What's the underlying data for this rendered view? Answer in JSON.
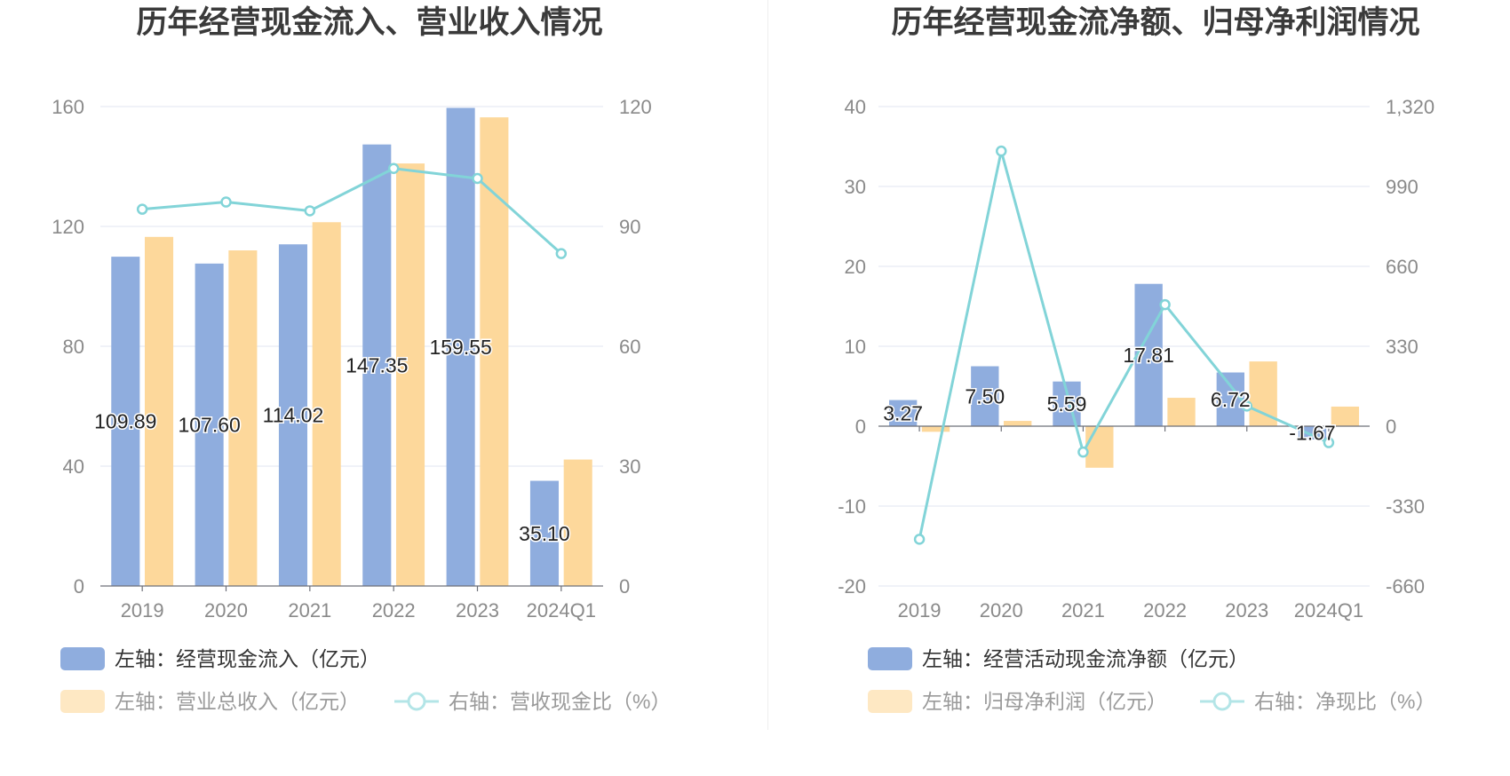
{
  "chart_data": [
    {
      "type": "bar",
      "title": "历年经营现金流入、营业收入情况",
      "categories": [
        "2019",
        "2020",
        "2021",
        "2022",
        "2023",
        "2024Q1"
      ],
      "y_left": {
        "range": [
          0,
          160
        ],
        "ticks": [
          "0",
          "40",
          "80",
          "120",
          "160"
        ]
      },
      "y_right": {
        "range": [
          0,
          120
        ],
        "ticks": [
          "0",
          "30",
          "60",
          "90",
          "120"
        ]
      },
      "series": [
        {
          "name": "左轴：经营现金流入（亿元）",
          "type": "bar",
          "axis": "left",
          "color": "#8fadde",
          "values": [
            109.89,
            107.6,
            114.02,
            147.35,
            159.55,
            35.1
          ],
          "labels": [
            "109.89",
            "107.60",
            "114.02",
            "147.35",
            "159.55",
            "35.10"
          ]
        },
        {
          "name": "左轴：营业总收入（亿元）",
          "type": "bar",
          "axis": "left",
          "color": "#fdd89b",
          "values": [
            116.5,
            112.0,
            121.4,
            141.0,
            156.4,
            42.2
          ]
        },
        {
          "name": "右轴：营收现金比（%）",
          "type": "line",
          "axis": "right",
          "color": "#82d4d8",
          "values": [
            94.3,
            96.1,
            93.9,
            104.5,
            102.0,
            83.2
          ]
        }
      ],
      "grid": true,
      "legend": "bottom-left"
    },
    {
      "type": "bar",
      "title": "历年经营现金流净额、归母净利润情况",
      "categories": [
        "2019",
        "2020",
        "2021",
        "2022",
        "2023",
        "2024Q1"
      ],
      "y_left": {
        "range": [
          -20,
          40
        ],
        "ticks": [
          "-20",
          "-10",
          "0",
          "10",
          "20",
          "30",
          "40"
        ]
      },
      "y_right": {
        "range": [
          -660,
          1320
        ],
        "ticks": [
          "-660",
          "-330",
          "0",
          "330",
          "660",
          "990",
          "1,320"
        ]
      },
      "series": [
        {
          "name": "左轴：经营活动现金流净额（亿元）",
          "type": "bar",
          "axis": "left",
          "color": "#8fadde",
          "values": [
            3.27,
            7.5,
            5.59,
            17.81,
            6.72,
            -1.67
          ],
          "labels": [
            "3.27",
            "7.50",
            "5.59",
            "17.81",
            "6.72",
            "-1.67"
          ]
        },
        {
          "name": "左轴：归母净利润（亿元）",
          "type": "bar",
          "axis": "left",
          "color": "#fdd89b",
          "values": [
            -0.7,
            0.66,
            -5.2,
            3.55,
            8.1,
            2.45
          ]
        },
        {
          "name": "右轴：净现比（%）",
          "type": "line",
          "axis": "right",
          "color": "#82d4d8",
          "values": [
            -467,
            1136,
            -107,
            502,
            83,
            -68
          ]
        }
      ],
      "grid": true,
      "legend": "bottom-left"
    }
  ]
}
